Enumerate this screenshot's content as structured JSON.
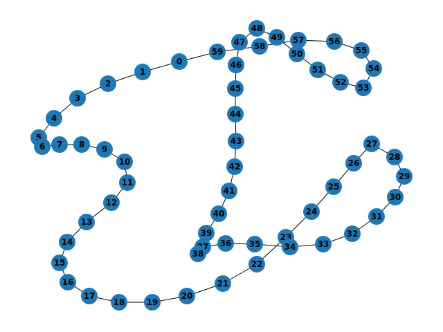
{
  "graph": {
    "node_color": "#1f77b4",
    "edge_color": "#000000",
    "label_color": "#000000",
    "nodes": [
      "0",
      "1",
      "2",
      "3",
      "4",
      "5",
      "6",
      "7",
      "8",
      "9",
      "10",
      "11",
      "12",
      "13",
      "14",
      "15",
      "16",
      "17",
      "18",
      "19",
      "20",
      "21",
      "22",
      "23",
      "24",
      "25",
      "26",
      "27",
      "28",
      "29",
      "30",
      "31",
      "32",
      "33",
      "34",
      "35",
      "36",
      "37",
      "38",
      "39",
      "40",
      "41",
      "42",
      "43",
      "44",
      "45",
      "46",
      "47",
      "48",
      "49",
      "50",
      "51",
      "52",
      "53",
      "54",
      "55",
      "56",
      "57",
      "58",
      "59"
    ],
    "edges": [
      [
        "0",
        "1"
      ],
      [
        "1",
        "2"
      ],
      [
        "2",
        "3"
      ],
      [
        "3",
        "4"
      ],
      [
        "4",
        "5"
      ],
      [
        "5",
        "6"
      ],
      [
        "6",
        "7"
      ],
      [
        "7",
        "8"
      ],
      [
        "8",
        "9"
      ],
      [
        "9",
        "10"
      ],
      [
        "10",
        "11"
      ],
      [
        "11",
        "12"
      ],
      [
        "12",
        "13"
      ],
      [
        "13",
        "14"
      ],
      [
        "14",
        "15"
      ],
      [
        "15",
        "16"
      ],
      [
        "16",
        "17"
      ],
      [
        "17",
        "18"
      ],
      [
        "18",
        "19"
      ],
      [
        "19",
        "20"
      ],
      [
        "20",
        "21"
      ],
      [
        "21",
        "22"
      ],
      [
        "22",
        "23"
      ],
      [
        "23",
        "24"
      ],
      [
        "24",
        "25"
      ],
      [
        "25",
        "26"
      ],
      [
        "26",
        "27"
      ],
      [
        "27",
        "28"
      ],
      [
        "28",
        "29"
      ],
      [
        "29",
        "30"
      ],
      [
        "30",
        "31"
      ],
      [
        "31",
        "32"
      ],
      [
        "32",
        "33"
      ],
      [
        "33",
        "34"
      ],
      [
        "34",
        "35"
      ],
      [
        "35",
        "36"
      ],
      [
        "36",
        "37"
      ],
      [
        "37",
        "38"
      ],
      [
        "38",
        "39"
      ],
      [
        "39",
        "40"
      ],
      [
        "40",
        "41"
      ],
      [
        "41",
        "42"
      ],
      [
        "42",
        "43"
      ],
      [
        "43",
        "44"
      ],
      [
        "44",
        "45"
      ],
      [
        "45",
        "46"
      ],
      [
        "46",
        "47"
      ],
      [
        "47",
        "48"
      ],
      [
        "48",
        "49"
      ],
      [
        "49",
        "50"
      ],
      [
        "50",
        "51"
      ],
      [
        "51",
        "52"
      ],
      [
        "52",
        "53"
      ],
      [
        "53",
        "54"
      ],
      [
        "54",
        "55"
      ],
      [
        "55",
        "56"
      ],
      [
        "56",
        "57"
      ],
      [
        "57",
        "58"
      ],
      [
        "58",
        "59"
      ],
      [
        "59",
        "0"
      ]
    ]
  }
}
